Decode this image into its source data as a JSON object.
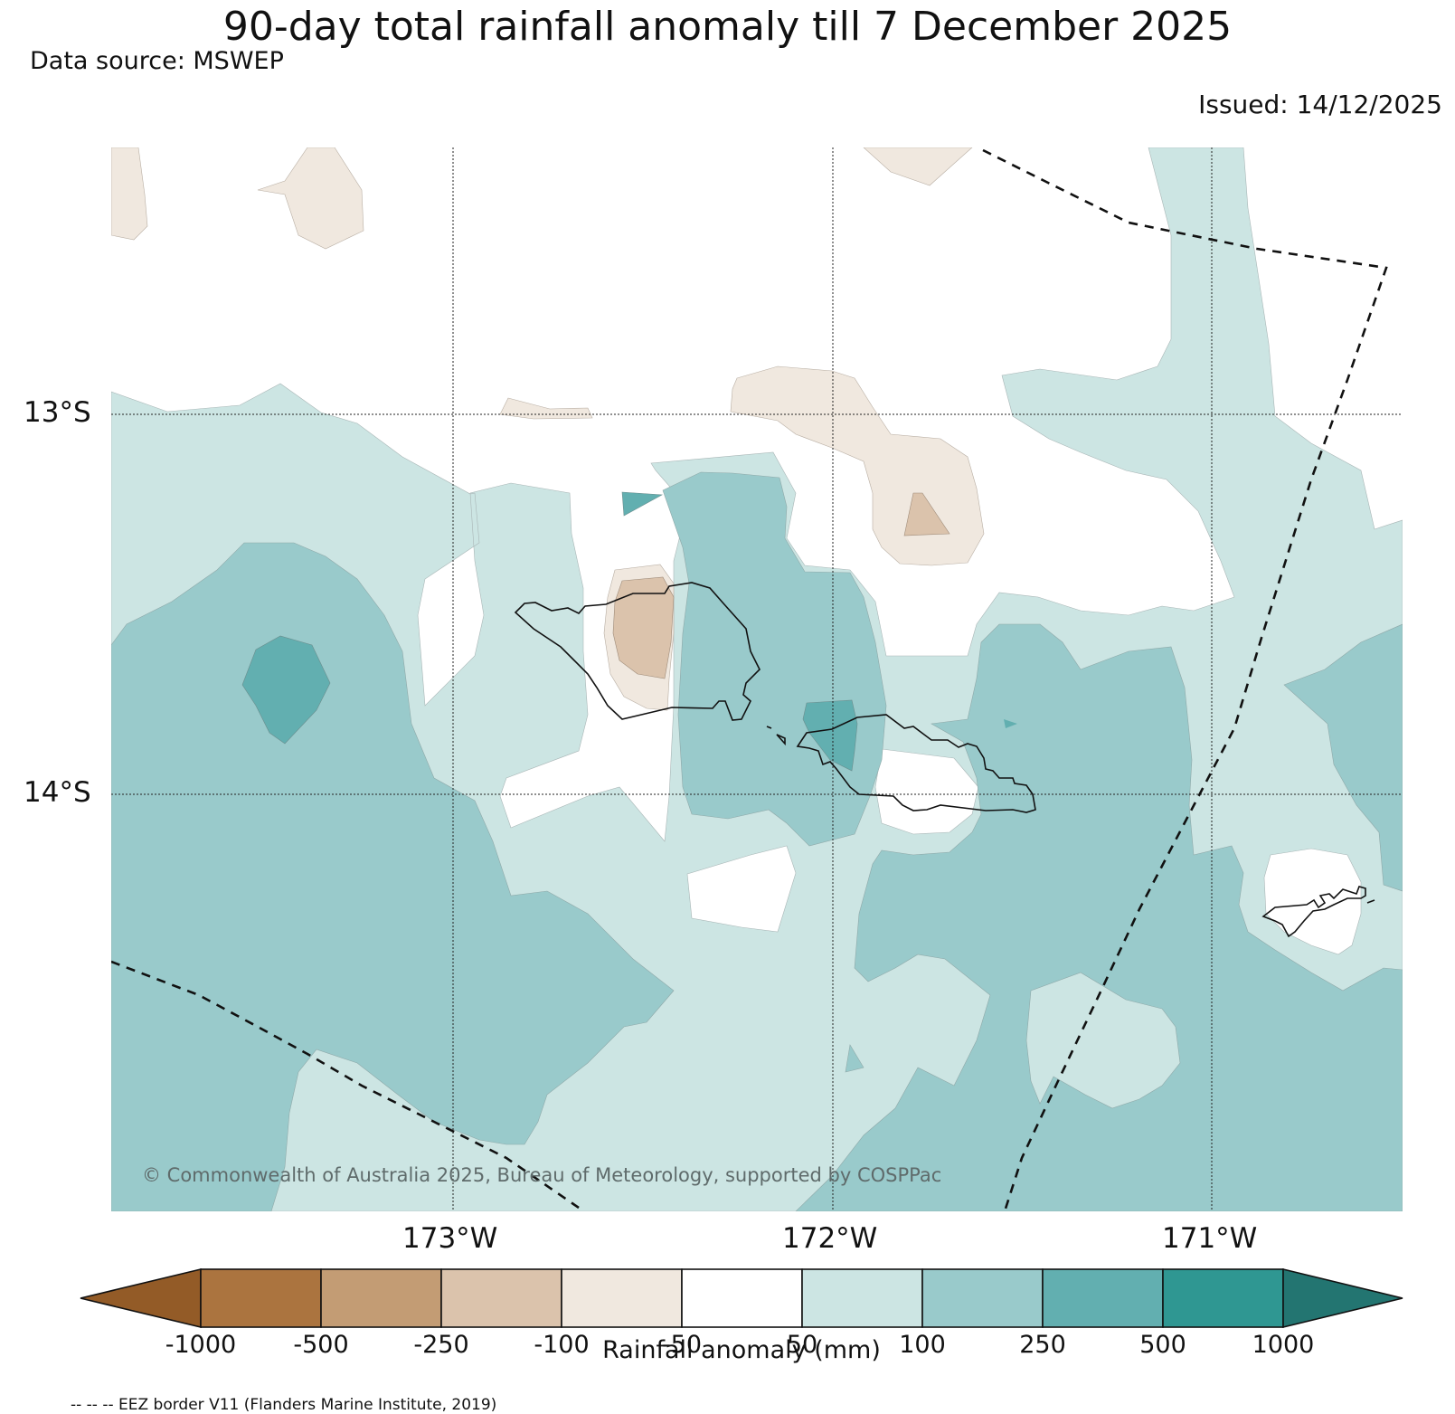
{
  "title": "90-day total rainfall anomaly till 7 December 2025",
  "data_source": "Data source: MSWEP",
  "issued": "Issued: 14/12/2025",
  "copyright": "© Commonwealth of Australia 2025, Bureau of Meteorology, supported by COSPPac",
  "eez_note": "-- -- -- EEZ border V11 (Flanders Marine Institute, 2019)",
  "map": {
    "lat_labels": [
      "13°S",
      "14°S"
    ],
    "lon_labels": [
      "173°W",
      "172°W",
      "171°W"
    ]
  },
  "colorbar": {
    "label": "Rainfall anomaly (mm)",
    "ticks": [
      "-1000",
      "-500",
      "-250",
      "-100",
      "-50",
      "50",
      "100",
      "250",
      "500",
      "1000"
    ],
    "colors": {
      "below_-1000": "#935b27",
      "-1000_-500": "#ab743f",
      "-500_-250": "#c39c74",
      "-250_-100": "#dbc3ac",
      "-100_-50": "#f0e8df",
      "-50_50": "#ffffff",
      "50_100": "#cce5e3",
      "100_250": "#99cacb",
      "250_500": "#62afb0",
      "500_1000": "#2f9792",
      "above_1000": "#237571"
    }
  }
}
